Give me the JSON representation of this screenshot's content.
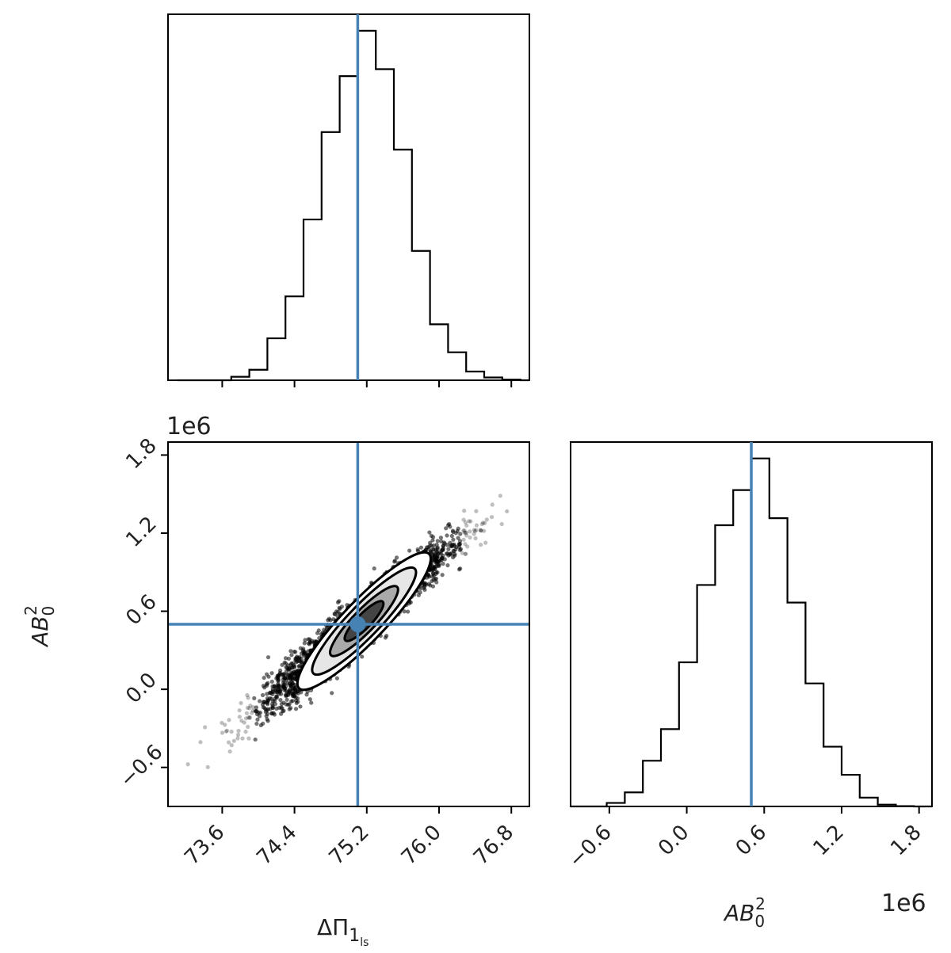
{
  "chart_data": {
    "type": "corner",
    "parameters": [
      "ΔΠ1 (ls)",
      "AB0^2"
    ],
    "truths": {
      "x": 75.1,
      "y": 500000
    },
    "panels": [
      {
        "id": "hist-dpi",
        "type": "histogram",
        "parameter": "ΔΠ1",
        "xlim": [
          73.0,
          77.0
        ],
        "bin_edges": [
          73.1,
          73.3,
          73.5,
          73.7,
          73.9,
          74.1,
          74.3,
          74.5,
          74.7,
          74.9,
          75.1,
          75.3,
          75.5,
          75.7,
          75.9,
          76.1,
          76.3,
          76.5,
          76.7,
          76.9,
          77.0
        ],
        "counts": [
          0,
          0,
          0,
          0.01,
          0.03,
          0.12,
          0.24,
          0.46,
          0.71,
          0.87,
          1.0,
          0.89,
          0.66,
          0.37,
          0.16,
          0.08,
          0.025,
          0.008,
          0.002,
          0
        ]
      },
      {
        "id": "scatter-2d",
        "type": "scatter-contour",
        "xlim": [
          73.0,
          77.0
        ],
        "ylim": [
          -900000,
          1900000
        ],
        "xticks": [
          "73.6",
          "74.4",
          "75.2",
          "76.0",
          "76.8"
        ],
        "xtick_values": [
          73.6,
          74.4,
          75.2,
          76.0,
          76.8
        ],
        "yticks": [
          "−0.6",
          "0.0",
          "0.6",
          "1.2",
          "1.8"
        ],
        "ytick_values": [
          -600000,
          0,
          600000,
          1200000,
          1800000
        ],
        "correlation_slope_per_unit": 580000,
        "spread_x": 0.5,
        "y_offset_label": "1e6"
      },
      {
        "id": "hist-ab",
        "type": "histogram",
        "parameter": "AB0^2",
        "xlim": [
          -900000,
          1900000
        ],
        "bin_edges": [
          -900000,
          -760000,
          -620000,
          -480000,
          -340000,
          -200000,
          -60000,
          80000,
          220000,
          360000,
          500000,
          640000,
          780000,
          920000,
          1060000,
          1200000,
          1340000,
          1480000,
          1620000,
          1760000,
          1900000
        ],
        "counts": [
          0,
          0,
          0.01,
          0.04,
          0.13,
          0.22,
          0.41,
          0.63,
          0.8,
          0.9,
          0.99,
          0.82,
          0.58,
          0.35,
          0.17,
          0.09,
          0.025,
          0.005,
          0.001,
          0
        ],
        "xticks": [
          "−0.6",
          "0.0",
          "0.6",
          "1.2",
          "1.8"
        ],
        "xtick_values": [
          -600000,
          0,
          600000,
          1200000,
          1800000
        ],
        "x_offset_label": "1e6"
      }
    ],
    "xlabel": "ΔΠ",
    "xlabel_sub": "1",
    "xlabel_subsub": "ls",
    "ylabel": "AB",
    "ylabel_sub": "0",
    "ylabel_sup": "2",
    "xlabel2": "AB",
    "xlabel2_sub": "0",
    "xlabel2_sup": "2",
    "truth_color": "#4682b4",
    "hist_color": "#000000"
  }
}
